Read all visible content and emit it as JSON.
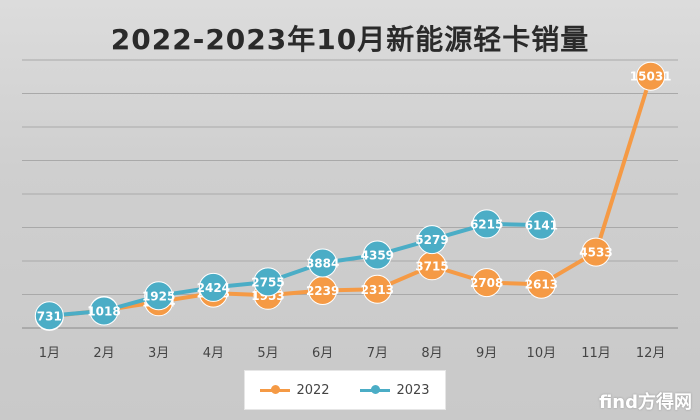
{
  "chart_data": {
    "type": "line",
    "title": "2022-2023年10月新能源轻卡销量",
    "categories": [
      "1月",
      "2月",
      "3月",
      "4月",
      "5月",
      "6月",
      "7月",
      "8月",
      "9月",
      "10月",
      "11月",
      "12月"
    ],
    "series": [
      {
        "name": "2022",
        "color": "#f59a45",
        "values": [
          694,
          1048,
          1564,
          2083,
          1953,
          2239,
          2313,
          3715,
          2708,
          2613,
          4533,
          15031
        ]
      },
      {
        "name": "2023",
        "color": "#4badc6",
        "values": [
          731,
          1018,
          1925,
          2424,
          2755,
          3884,
          4359,
          5279,
          6215,
          6141,
          null,
          null
        ]
      }
    ],
    "xlabel": "",
    "ylabel": "",
    "ylim": [
      0,
      16000
    ],
    "grid": true,
    "legend": "bottom"
  },
  "watermark": "find方得网"
}
